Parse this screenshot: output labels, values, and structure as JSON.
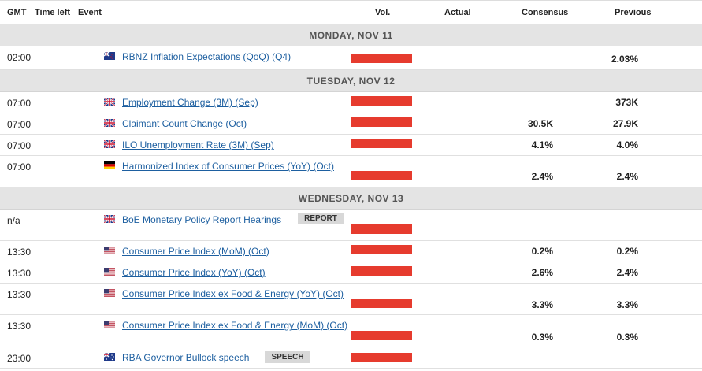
{
  "columns": {
    "gmt": "GMT",
    "time_left": "Time left",
    "event": "Event",
    "vol": "Vol.",
    "actual": "Actual",
    "consensus": "Consensus",
    "previous": "Previous"
  },
  "colors": {
    "volume_high": "#e63b2e",
    "link": "#1d5fa0",
    "day_bar": "#e4e4e4"
  },
  "days": [
    {
      "label": "MONDAY, NOV 11",
      "events": [
        {
          "time": "02:00",
          "flag": "nz-flag-icon",
          "name": "RBNZ Inflation Expectations (QoQ) (Q4)",
          "actual": "",
          "consensus": "",
          "previous": "2.03%"
        }
      ]
    },
    {
      "label": "TUESDAY, NOV 12",
      "events": [
        {
          "time": "07:00",
          "flag": "uk-flag-icon",
          "name": "Employment Change (3M) (Sep)",
          "actual": "",
          "consensus": "",
          "previous": "373K"
        },
        {
          "time": "07:00",
          "flag": "uk-flag-icon",
          "name": "Claimant Count Change (Oct)",
          "actual": "",
          "consensus": "30.5K",
          "previous": "27.9K"
        },
        {
          "time": "07:00",
          "flag": "uk-flag-icon",
          "name": "ILO Unemployment Rate (3M) (Sep)",
          "actual": "",
          "consensus": "4.1%",
          "previous": "4.0%"
        },
        {
          "time": "07:00",
          "flag": "de-flag-icon",
          "name": "Harmonized Index of Consumer Prices (YoY) (Oct)",
          "actual": "",
          "consensus": "2.4%",
          "previous": "2.4%"
        }
      ]
    },
    {
      "label": "WEDNESDAY, NOV 13",
      "events": [
        {
          "time": "n/a",
          "flag": "uk-flag-icon",
          "name": "BoE Monetary Policy Report Hearings",
          "tag": "REPORT",
          "actual": "",
          "consensus": "",
          "previous": ""
        },
        {
          "time": "13:30",
          "flag": "us-flag-icon",
          "name": "Consumer Price Index (MoM) (Oct)",
          "actual": "",
          "consensus": "0.2%",
          "previous": "0.2%"
        },
        {
          "time": "13:30",
          "flag": "us-flag-icon",
          "name": "Consumer Price Index (YoY) (Oct)",
          "actual": "",
          "consensus": "2.6%",
          "previous": "2.4%"
        },
        {
          "time": "13:30",
          "flag": "us-flag-icon",
          "name": "Consumer Price Index ex Food & Energy (YoY) (Oct)",
          "actual": "",
          "consensus": "3.3%",
          "previous": "3.3%"
        },
        {
          "time": "13:30",
          "flag": "us-flag-icon",
          "name": "Consumer Price Index ex Food & Energy (MoM) (Oct)",
          "actual": "",
          "consensus": "0.3%",
          "previous": "0.3%"
        },
        {
          "time": "23:00",
          "flag": "au-flag-icon",
          "name": "RBA Governor Bullock speech",
          "tag": "SPEECH",
          "actual": "",
          "consensus": "",
          "previous": ""
        }
      ]
    }
  ]
}
